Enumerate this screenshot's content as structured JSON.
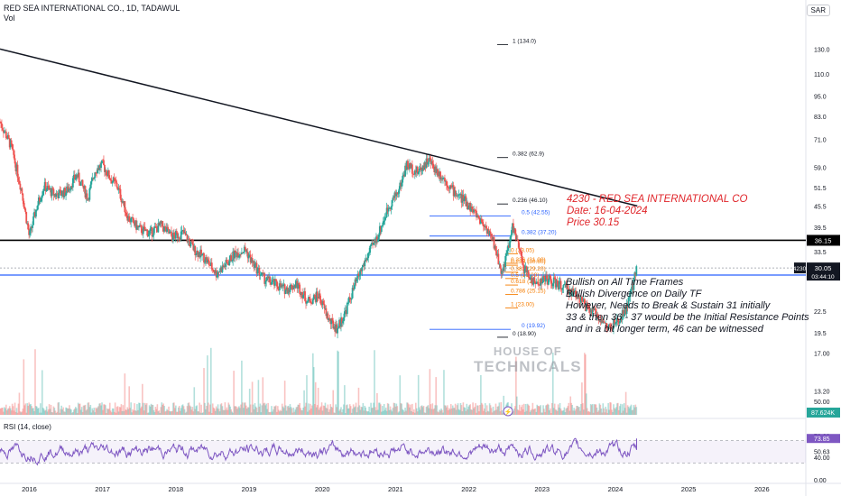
{
  "header": {
    "symbol_line": "RED SEA INTERNATIONAL CO., 1D, TADAWUL",
    "vol_label": "Vol",
    "currency_button": "SAR"
  },
  "rsi_label": "RSI (14, close)",
  "note": {
    "line1": "4230 - RED SEA INTERNATIONAL CO",
    "line2": "Date: 16-04-2024",
    "line3": "Price 30.15"
  },
  "analysis": [
    "Bullish on All Time Frames",
    "Bullish Divergence on Daily TF",
    "However, Needs to Break & Sustain 31 initially",
    "33 & then 36 - 37 would be the Initial Resistance Points",
    "and in a bit longer term, 46 can be witnessed"
  ],
  "watermark": {
    "line1": "HOUSE OF",
    "line2": "TECHNICALS"
  },
  "colors": {
    "up": "#26a69a",
    "down": "#ef5350",
    "rsi": "#7e57c2",
    "note": "#e0262b",
    "blue_line": "#2962ff",
    "fib_orange": "#f57c00"
  },
  "chart_data": {
    "type": "line",
    "scale": "log",
    "x_axis": {
      "labels": [
        "2016",
        "2017",
        "2018",
        "2019",
        "2020",
        "2021",
        "2022",
        "2023",
        "2024",
        "2025",
        "2026"
      ],
      "start_year": 2015.6,
      "end_year": 2026.6
    },
    "y_axis": {
      "ticks": [
        130.0,
        110.0,
        95.0,
        83.0,
        71.0,
        59.0,
        51.5,
        45.5,
        39.5,
        33.5,
        22.5,
        19.5,
        17.0,
        13.2
      ],
      "tick_labels": [
        "130.0",
        "110.0",
        "95.0",
        "83.0",
        "71.0",
        "59.0",
        "51.5",
        "45.5",
        "39.5",
        "33.5",
        "22.5",
        "19.5",
        "17.00",
        "13.20"
      ],
      "ylim": [
        11.8,
        160
      ]
    },
    "price_series": {
      "name": "RED SEA INTERNATIONAL CO.",
      "x": [
        2015.6,
        2015.75,
        2015.9,
        2016.0,
        2016.1,
        2016.2,
        2016.35,
        2016.5,
        2016.65,
        2016.8,
        2016.9,
        2017.0,
        2017.1,
        2017.2,
        2017.35,
        2017.5,
        2017.65,
        2017.8,
        2017.95,
        2018.1,
        2018.25,
        2018.4,
        2018.55,
        2018.7,
        2018.8,
        2018.95,
        2019.05,
        2019.2,
        2019.35,
        2019.5,
        2019.65,
        2019.8,
        2019.95,
        2020.1,
        2020.2,
        2020.3,
        2020.45,
        2020.6,
        2020.75,
        2020.9,
        2021.05,
        2021.15,
        2021.3,
        2021.45,
        2021.55,
        2021.65,
        2021.8,
        2021.95,
        2022.1,
        2022.25,
        2022.35,
        2022.45,
        2022.55,
        2022.6,
        2022.75,
        2022.9,
        2023.05,
        2023.2,
        2023.35,
        2023.5,
        2023.6,
        2023.75,
        2023.9,
        2024.05,
        2024.15,
        2024.25,
        2024.29
      ],
      "y": [
        80,
        68,
        50,
        37,
        45,
        52,
        49,
        50,
        56,
        48,
        58,
        60,
        55,
        52,
        42,
        39,
        38,
        40,
        37,
        38,
        34,
        32,
        29,
        31,
        33,
        34,
        31,
        28,
        27,
        26,
        27,
        24,
        25,
        21,
        20,
        22,
        27,
        32,
        37,
        45,
        51,
        60,
        57,
        62,
        58,
        55,
        50,
        47,
        43,
        39,
        35,
        29,
        35,
        40,
        30,
        27,
        28,
        27,
        26,
        25,
        23,
        22,
        20,
        21,
        23,
        27,
        31
      ]
    },
    "current_price": {
      "value": 30.05,
      "label": "30.05",
      "ticker": "4230",
      "countdown": "03:44:10"
    },
    "horizontal_levels": [
      {
        "value": 36.15,
        "label": "36.15",
        "color": "#000000"
      },
      {
        "value": 28.65,
        "label": "28.65",
        "color": "#2962ff"
      }
    ],
    "volume": {
      "label": "87.624K",
      "axis_label": "50.00"
    },
    "rsi": {
      "ticks": [
        "79.08",
        "73.85",
        "50.63",
        "40.00",
        "0.00"
      ],
      "current": "73.85",
      "band_upper": 70,
      "band_lower": 30
    },
    "trendline": {
      "from": {
        "x": 2015.6,
        "y": 130
      },
      "to": {
        "x": 2024.3,
        "y": 45.5
      }
    },
    "fib_sets": [
      {
        "levels": [
          {
            "label": "1 (134.0)",
            "value": 134.0
          },
          {
            "label": "0.382 (62.9)",
            "value": 62.9
          },
          {
            "label": "0.236 (46.10)",
            "value": 46.1
          },
          {
            "label": "0 (18.90)",
            "value": 18.9
          }
        ]
      },
      {
        "levels": [
          {
            "label": "0.5 (42.55)",
            "value": 42.55
          },
          {
            "label": "0.382 (37.20)",
            "value": 37.2
          },
          {
            "label": "0 (19.92)",
            "value": 19.92
          }
        ]
      },
      {
        "levels": [
          {
            "label": "0 (33.05)",
            "value": 33.05
          },
          {
            "label": "0.236 (30.60)",
            "value": 30.6
          },
          {
            "label": "0.382 (29.20)",
            "value": 29.2
          },
          {
            "label": "0.5 (28.00)",
            "value": 28.0
          },
          {
            "label": "0.618 (26.80)",
            "value": 26.8
          },
          {
            "label": "0.786 (25.15)",
            "value": 25.15
          },
          {
            "label": "1 (23.00)",
            "value": 23.0
          },
          {
            "label": "0.236 (31.00)",
            "value": 31.0
          }
        ]
      }
    ]
  }
}
